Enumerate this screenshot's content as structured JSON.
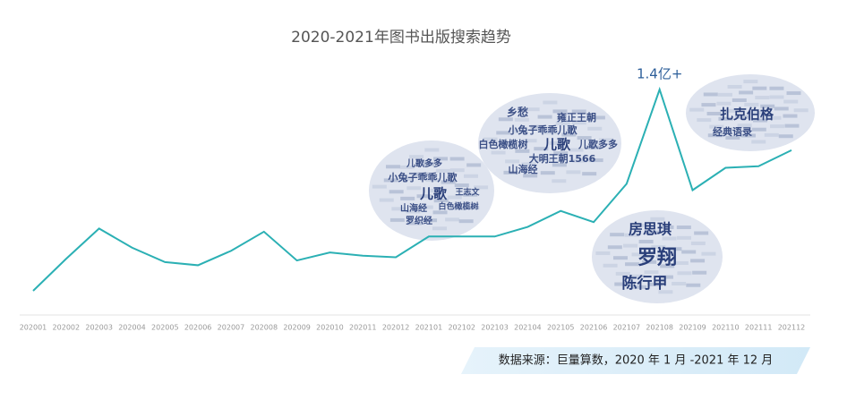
{
  "chart_data": {
    "type": "line",
    "title": "2020-2021年图书出版搜索趋势",
    "categories": [
      "202001",
      "202002",
      "202003",
      "202004",
      "202005",
      "202006",
      "202007",
      "202008",
      "202009",
      "202010",
      "202011",
      "202012",
      "202101",
      "202102",
      "202103",
      "202104",
      "202105",
      "202106",
      "202107",
      "202108",
      "202109",
      "202110",
      "202111",
      "202112"
    ],
    "series": [
      {
        "color": "#2bb0b4",
        "values": [
          0.14,
          0.34,
          0.53,
          0.41,
          0.32,
          0.3,
          0.39,
          0.51,
          0.33,
          0.38,
          0.36,
          0.35,
          0.48,
          0.48,
          0.48,
          0.54,
          0.64,
          0.57,
          0.81,
          1.4,
          0.77,
          0.91,
          0.92,
          1.02
        ],
        "value_labels": [
          null,
          null,
          null,
          null,
          null,
          null,
          null,
          null,
          null,
          null,
          null,
          null,
          null,
          null,
          null,
          null,
          null,
          null,
          null,
          "1.4亿+",
          null,
          null,
          null,
          null
        ]
      }
    ],
    "ylim": [
      0,
      1.4
    ],
    "word_clouds": [
      {
        "words": [
          "儿歌多多",
          "小兔子乖乖儿歌",
          "儿歌",
          "王志文",
          "山海经",
          "白色橄榄树",
          "罗织经"
        ]
      },
      {
        "words": [
          "乡愁",
          "雍正王朝",
          "小兔子乖乖儿歌",
          "白色橄榄树",
          "儿歌",
          "儿歌多多",
          "大明王朝1566",
          "山海经"
        ]
      },
      {
        "words": [
          "房思琪",
          "罗翔",
          "陈行甲"
        ]
      },
      {
        "words": [
          "扎克伯格",
          "经典语录"
        ]
      }
    ],
    "source": "数据来源：巨量算数，2020 年 1 月 -2021 年 12 月"
  }
}
